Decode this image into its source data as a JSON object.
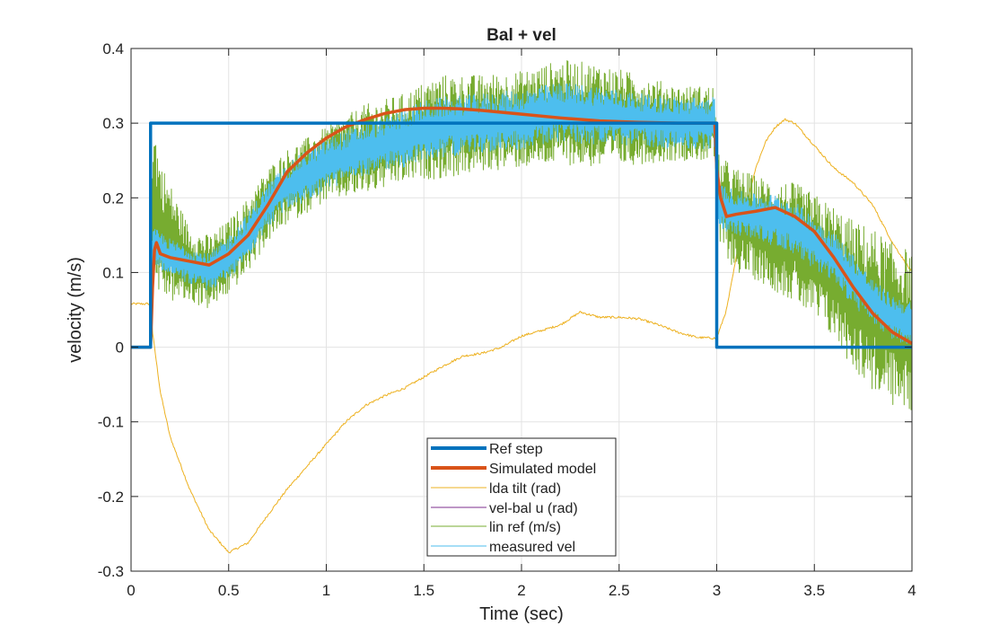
{
  "chart_data": {
    "type": "line",
    "title": "Bal + vel",
    "xlabel": "Time (sec)",
    "ylabel": "velocity (m/s)",
    "xlim": [
      0,
      4
    ],
    "ylim": [
      -0.3,
      0.4
    ],
    "xticks": [
      0,
      0.5,
      1,
      1.5,
      2,
      2.5,
      3,
      3.5,
      4
    ],
    "xtick_labels": [
      "0",
      "0.5",
      "1",
      "1.5",
      "2",
      "2.5",
      "3",
      "3.5",
      "4"
    ],
    "yticks": [
      -0.3,
      -0.2,
      -0.1,
      0,
      0.1,
      0.2,
      0.3,
      0.4
    ],
    "ytick_labels": [
      "-0.3",
      "-0.2",
      "-0.1",
      "0",
      "0.1",
      "0.2",
      "0.3",
      "0.4"
    ],
    "grid": true,
    "legend_position": "bottom-center",
    "series": [
      {
        "name": "Ref step",
        "color": "#0072BD",
        "style": "thick",
        "x": [
          0,
          0.1,
          0.1,
          3.0,
          3.0,
          4.0
        ],
        "y": [
          0,
          0,
          0.3,
          0.3,
          0,
          0
        ]
      },
      {
        "name": "Simulated model",
        "color": "#D95319",
        "style": "thick",
        "x": [
          0,
          0.1,
          0.11,
          0.12,
          0.13,
          0.15,
          0.2,
          0.3,
          0.4,
          0.5,
          0.6,
          0.7,
          0.8,
          0.9,
          1.0,
          1.1,
          1.2,
          1.3,
          1.4,
          1.5,
          1.6,
          1.7,
          1.8,
          2.0,
          2.2,
          2.4,
          2.6,
          2.8,
          2.99,
          3.0,
          3.02,
          3.05,
          3.1,
          3.2,
          3.3,
          3.4,
          3.5,
          3.6,
          3.7,
          3.8,
          3.9,
          4.0
        ],
        "y": [
          0,
          0,
          0.08,
          0.13,
          0.14,
          0.125,
          0.12,
          0.115,
          0.11,
          0.125,
          0.15,
          0.19,
          0.235,
          0.26,
          0.28,
          0.295,
          0.305,
          0.313,
          0.318,
          0.32,
          0.32,
          0.319,
          0.317,
          0.312,
          0.307,
          0.303,
          0.301,
          0.3,
          0.3,
          0.24,
          0.2,
          0.175,
          0.178,
          0.182,
          0.187,
          0.175,
          0.155,
          0.12,
          0.08,
          0.045,
          0.02,
          0.005
        ]
      },
      {
        "name": "lda tilt (rad)",
        "color": "#EDB120",
        "style": "thin",
        "x": [
          0,
          0.1,
          0.11,
          0.15,
          0.2,
          0.3,
          0.4,
          0.5,
          0.6,
          0.7,
          0.8,
          0.9,
          1.0,
          1.1,
          1.2,
          1.3,
          1.4,
          1.5,
          1.6,
          1.7,
          1.8,
          1.9,
          2.0,
          2.1,
          2.2,
          2.3,
          2.4,
          2.5,
          2.6,
          2.7,
          2.8,
          2.9,
          3.0,
          3.05,
          3.1,
          3.15,
          3.2,
          3.25,
          3.3,
          3.35,
          3.4,
          3.5,
          3.6,
          3.7,
          3.8,
          3.9,
          4.0
        ],
        "y": [
          0.058,
          0.058,
          0.02,
          -0.06,
          -0.12,
          -0.19,
          -0.245,
          -0.275,
          -0.262,
          -0.225,
          -0.19,
          -0.16,
          -0.13,
          -0.1,
          -0.078,
          -0.065,
          -0.055,
          -0.04,
          -0.025,
          -0.012,
          -0.008,
          0.0,
          0.015,
          0.022,
          0.03,
          0.047,
          0.04,
          0.04,
          0.038,
          0.03,
          0.02,
          0.013,
          0.012,
          0.05,
          0.12,
          0.19,
          0.24,
          0.275,
          0.295,
          0.305,
          0.3,
          0.27,
          0.24,
          0.22,
          0.19,
          0.14,
          0.1
        ]
      },
      {
        "name": "vel-bal u (rad)",
        "color": "#7E2F8E",
        "style": "thin",
        "x": [],
        "y": []
      },
      {
        "name": "lin ref (m/s)",
        "color": "#77AC30",
        "style": "thin",
        "x": [
          0,
          0.1,
          0.11,
          0.15,
          0.2,
          0.3,
          0.4,
          0.5,
          0.6,
          0.7,
          0.8,
          0.9,
          1.0,
          1.1,
          1.2,
          1.3,
          1.4,
          1.5,
          1.6,
          1.8,
          2.0,
          2.2,
          2.4,
          2.6,
          2.8,
          2.99,
          3.0,
          3.1,
          3.2,
          3.3,
          3.4,
          3.5,
          3.6,
          3.7,
          3.8,
          3.9,
          4.0
        ],
        "y": [
          0,
          0,
          0.2,
          0.16,
          0.14,
          0.11,
          0.1,
          0.12,
          0.15,
          0.19,
          0.215,
          0.23,
          0.245,
          0.255,
          0.265,
          0.272,
          0.28,
          0.29,
          0.295,
          0.3,
          0.305,
          0.315,
          0.31,
          0.305,
          0.3,
          0.3,
          0.2,
          0.17,
          0.16,
          0.15,
          0.14,
          0.12,
          0.1,
          0.07,
          0.05,
          0.03,
          0.02
        ],
        "noise_amplitude": [
          0,
          0,
          0.12,
          0.09,
          0.08,
          0.05,
          0.05,
          0.05,
          0.05,
          0.05,
          0.05,
          0.05,
          0.05,
          0.055,
          0.06,
          0.06,
          0.06,
          0.065,
          0.07,
          0.065,
          0.065,
          0.07,
          0.07,
          0.06,
          0.05,
          0.05,
          0.06,
          0.07,
          0.07,
          0.075,
          0.08,
          0.085,
          0.09,
          0.1,
          0.11,
          0.11,
          0.11
        ]
      },
      {
        "name": "measured vel",
        "color": "#4DBEEE",
        "style": "thin",
        "x": [
          0,
          0.1,
          0.11,
          0.15,
          0.2,
          0.3,
          0.4,
          0.5,
          0.6,
          0.7,
          0.8,
          0.9,
          1.0,
          1.1,
          1.2,
          1.3,
          1.4,
          1.5,
          1.6,
          1.8,
          2.0,
          2.2,
          2.4,
          2.6,
          2.8,
          2.99,
          3.0,
          3.1,
          3.2,
          3.3,
          3.4,
          3.5,
          3.6,
          3.7,
          3.8,
          3.9,
          4.0
        ],
        "y": [
          0,
          0,
          0.13,
          0.13,
          0.12,
          0.11,
          0.1,
          0.12,
          0.15,
          0.19,
          0.215,
          0.23,
          0.245,
          0.255,
          0.265,
          0.272,
          0.28,
          0.29,
          0.295,
          0.3,
          0.305,
          0.315,
          0.31,
          0.305,
          0.3,
          0.3,
          0.19,
          0.18,
          0.175,
          0.17,
          0.16,
          0.14,
          0.12,
          0.09,
          0.06,
          0.04,
          0.03
        ],
        "noise_amplitude": [
          0,
          0,
          0.03,
          0.025,
          0.025,
          0.025,
          0.025,
          0.03,
          0.03,
          0.03,
          0.03,
          0.035,
          0.035,
          0.035,
          0.035,
          0.035,
          0.04,
          0.04,
          0.04,
          0.04,
          0.04,
          0.04,
          0.04,
          0.035,
          0.035,
          0.035,
          0.03,
          0.03,
          0.03,
          0.035,
          0.035,
          0.035,
          0.035,
          0.035,
          0.03,
          0.03,
          0.03
        ]
      }
    ]
  }
}
